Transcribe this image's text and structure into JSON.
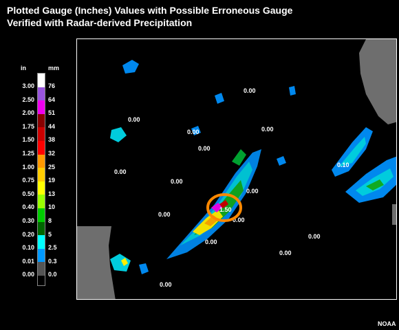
{
  "title": {
    "line1": "Plotted Gauge (Inches) Values with Possible Erroneous Gauge",
    "line2": "Verified with Radar-derived Precipitation"
  },
  "legend": {
    "unit_in": "in",
    "unit_mm": "mm",
    "levels": [
      {
        "in": "3.00",
        "mm": "76",
        "color": "#ffffff"
      },
      {
        "in": "2.50",
        "mm": "64",
        "color": "#9955dd"
      },
      {
        "in": "2.00",
        "mm": "51",
        "color": "#ee00ee"
      },
      {
        "in": "1.75",
        "mm": "44",
        "color": "#880000"
      },
      {
        "in": "1.50",
        "mm": "38",
        "color": "#cc0000"
      },
      {
        "in": "1.25",
        "mm": "32",
        "color": "#ff0000"
      },
      {
        "in": "1.00",
        "mm": "25",
        "color": "#ff9900"
      },
      {
        "in": "0.75",
        "mm": "19",
        "color": "#ffcc00"
      },
      {
        "in": "0.50",
        "mm": "13",
        "color": "#ffff00"
      },
      {
        "in": "0.40",
        "mm": "10",
        "color": "#99ff00"
      },
      {
        "in": "0.30",
        "mm": "8",
        "color": "#00cc00"
      },
      {
        "in": "0.20",
        "mm": "5",
        "color": "#006600"
      },
      {
        "in": "0.10",
        "mm": "2.5",
        "color": "#00ffff"
      },
      {
        "in": "0.01",
        "mm": "0.3",
        "color": "#0099ff"
      },
      {
        "in": "0.00",
        "mm": "0.0",
        "color": "#555555"
      }
    ]
  },
  "gauges": [
    {
      "value": "0.00"
    },
    {
      "value": "0.00"
    },
    {
      "value": "0.00"
    },
    {
      "value": "0.00"
    },
    {
      "value": "0.00"
    },
    {
      "value": "0.00"
    },
    {
      "value": "0.00"
    },
    {
      "value": "0.00"
    },
    {
      "value": "0.00"
    },
    {
      "value": "1.50"
    },
    {
      "value": "0.00"
    },
    {
      "value": "0.00"
    },
    {
      "value": "0.00"
    },
    {
      "value": "0.00"
    },
    {
      "value": "0.00"
    },
    {
      "value": "0.10"
    }
  ],
  "highlight": {
    "color": "#ff8800"
  },
  "credit": "NOAA"
}
